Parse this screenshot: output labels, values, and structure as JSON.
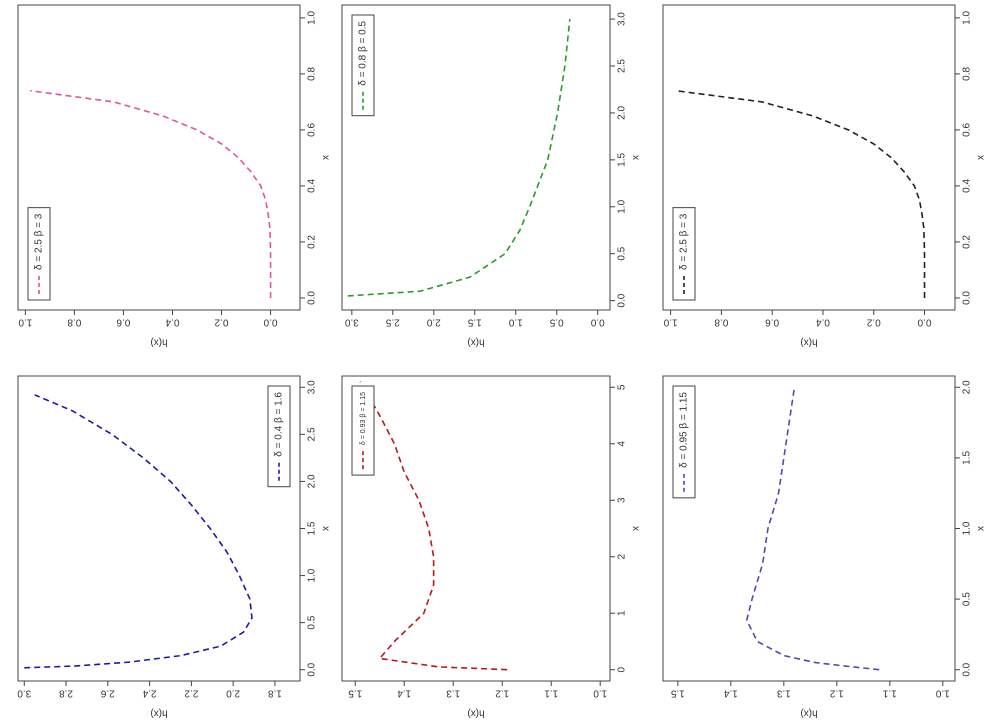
{
  "chart_data": [
    {
      "type": "line",
      "xlabel": "x",
      "ylabel": "h(x)",
      "legend": "topleft",
      "x": [
        0,
        0.05,
        0.1,
        0.15,
        0.2,
        0.25,
        0.3,
        0.35,
        0.4,
        0.45,
        0.5,
        0.55,
        0.6,
        0.65,
        0.7,
        0.74
      ],
      "series": [
        {
          "name": "δ = 2.5  β = 3",
          "color": "#dd559b",
          "values": [
            0,
            0,
            0,
            0,
            0.001,
            0.003,
            0.01,
            0.02,
            0.04,
            0.08,
            0.13,
            0.2,
            0.3,
            0.44,
            0.64,
            0.98
          ]
        }
      ],
      "xlim": [
        -0.043,
        1.046
      ],
      "ylim": [
        -0.12,
        1.03
      ],
      "xticks": [
        {
          "value": 0,
          "label": "0.0"
        },
        0.2,
        0.4,
        0.6,
        0.8,
        {
          "value": 1,
          "label": "1.0"
        }
      ],
      "yticks": [
        {
          "value": 0,
          "label": "0.0"
        },
        0.2,
        0.4,
        0.6,
        0.8,
        {
          "value": 1,
          "label": "1.0"
        }
      ]
    },
    {
      "type": "line",
      "xlabel": "x",
      "ylabel": "h(x)",
      "legend": "topright",
      "x": [
        0.05,
        0.1,
        0.25,
        0.5,
        0.75,
        1.0,
        1.5,
        2.0,
        2.5,
        3.0
      ],
      "series": [
        {
          "name": "δ = 0.8  β = 0.5",
          "color": "#2a9a2a",
          "values": [
            3.05,
            2.17,
            1.56,
            1.13,
            0.95,
            0.83,
            0.61,
            0.49,
            0.4,
            0.34
          ]
        }
      ],
      "xlim": [
        -0.1,
        3.15
      ],
      "ylim": [
        -0.15,
        3.12
      ],
      "xticks": [
        {
          "value": 0,
          "label": "0.0"
        },
        0.5,
        {
          "value": 1,
          "label": "1.0"
        },
        1.5,
        {
          "value": 2,
          "label": "2.0"
        },
        2.5,
        {
          "value": 3,
          "label": "3.0"
        }
      ],
      "yticks": [
        {
          "value": 0,
          "label": "0.0"
        },
        0.5,
        {
          "value": 1,
          "label": "1.0"
        },
        1.5,
        {
          "value": 2,
          "label": "2.0"
        },
        2.5,
        {
          "value": 3,
          "label": "3.0"
        }
      ]
    },
    {
      "type": "line",
      "xlabel": "x",
      "ylabel": "h(x)",
      "legend": "topleft",
      "x": [
        0,
        0.05,
        0.1,
        0.15,
        0.2,
        0.25,
        0.3,
        0.35,
        0.4,
        0.45,
        0.5,
        0.55,
        0.6,
        0.65,
        0.7,
        0.74
      ],
      "series": [
        {
          "name": "δ = 2.5  β = 3",
          "color": "#222222",
          "values": [
            0,
            0,
            0,
            0,
            0.001,
            0.003,
            0.01,
            0.02,
            0.04,
            0.08,
            0.13,
            0.2,
            0.3,
            0.44,
            0.64,
            0.98
          ]
        }
      ],
      "xlim": [
        -0.043,
        1.046
      ],
      "ylim": [
        -0.12,
        1.03
      ],
      "xticks": [
        {
          "value": 0,
          "label": "0.0"
        },
        0.2,
        0.4,
        0.6,
        0.8,
        {
          "value": 1,
          "label": "1.0"
        }
      ],
      "yticks": [
        {
          "value": 0,
          "label": "0.0"
        },
        0.2,
        0.4,
        0.6,
        0.8,
        {
          "value": 1,
          "label": "1.0"
        }
      ]
    },
    {
      "type": "line",
      "xlabel": "x",
      "ylabel": "h(x)",
      "legend": "bottomright",
      "x": [
        0.02,
        0.04,
        0.08,
        0.15,
        0.25,
        0.4,
        0.55,
        0.75,
        1.0,
        1.25,
        1.5,
        1.75,
        2.0,
        2.25,
        2.5,
        2.75,
        2.92
      ],
      "series": [
        {
          "name": "δ = 0.4  β = 1.6",
          "color": "#1a1aa6",
          "values": [
            3.0,
            2.75,
            2.5,
            2.25,
            2.06,
            1.95,
            1.91,
            1.92,
            1.97,
            2.03,
            2.11,
            2.2,
            2.3,
            2.43,
            2.58,
            2.77,
            2.95
          ]
        }
      ],
      "xlim": [
        -0.12,
        3.12
      ],
      "ylim": [
        1.68,
        3.03
      ],
      "xticks": [
        {
          "value": 0,
          "label": "0.0"
        },
        0.5,
        {
          "value": 1,
          "label": "1.0"
        },
        1.5,
        {
          "value": 2,
          "label": "2.0"
        },
        2.5,
        {
          "value": 3,
          "label": "3.0"
        }
      ],
      "yticks": [
        1.8,
        {
          "value": 2,
          "label": "2.0"
        },
        2.2,
        2.4,
        2.6,
        2.8,
        {
          "value": 3,
          "label": "3.0"
        }
      ]
    },
    {
      "type": "line",
      "xlabel": "x",
      "ylabel": "h(x)",
      "legend": "topright",
      "x": [
        0,
        0.05,
        0.2,
        0.5,
        1.0,
        1.5,
        2.0,
        2.5,
        3.0,
        3.5,
        4.0,
        4.5,
        5.1
      ],
      "series": [
        {
          "name": "δ = 0.93  β = 1.15",
          "color": "#b51a1a",
          "values": [
            1.19,
            1.33,
            1.45,
            1.42,
            1.36,
            1.34,
            1.34,
            1.35,
            1.37,
            1.4,
            1.42,
            1.45,
            1.49
          ]
        }
      ],
      "xlim": [
        -0.2,
        5.2
      ],
      "ylim": [
        0.98,
        1.527
      ],
      "xticks": [
        0,
        1,
        2,
        3,
        4,
        5
      ],
      "yticks": [
        {
          "value": 1,
          "label": "1.0"
        },
        1.1,
        1.2,
        1.3,
        1.4,
        1.5
      ]
    },
    {
      "type": "line",
      "xlabel": "x",
      "ylabel": "h(x)",
      "legend": "topright",
      "x": [
        0,
        0.02,
        0.05,
        0.1,
        0.2,
        0.35,
        0.5,
        0.75,
        1.0,
        1.25,
        1.5,
        1.75,
        2.0
      ],
      "series": [
        {
          "name": "δ = 0.95  β = 1.15",
          "color": "#5646b2",
          "values": [
            1.12,
            1.17,
            1.24,
            1.3,
            1.35,
            1.37,
            1.36,
            1.34,
            1.33,
            1.31,
            1.3,
            1.29,
            1.28
          ]
        }
      ],
      "xlim": [
        -0.08,
        2.08
      ],
      "ylim": [
        0.977,
        1.528
      ],
      "xticks": [
        {
          "value": 0,
          "label": "0.0"
        },
        0.5,
        {
          "value": 1,
          "label": "1.0"
        },
        1.5,
        {
          "value": 2,
          "label": "2.0"
        }
      ],
      "yticks": [
        {
          "value": 1,
          "label": "1.0"
        },
        1.1,
        1.2,
        1.3,
        1.4,
        1.5
      ]
    }
  ]
}
